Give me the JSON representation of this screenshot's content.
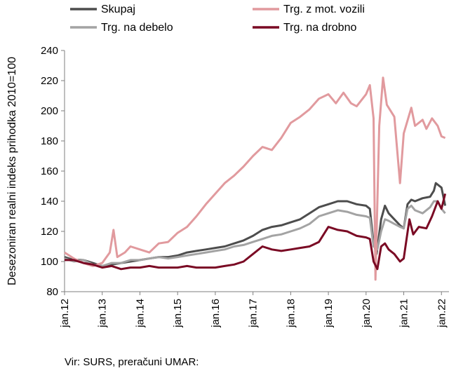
{
  "chart_data": {
    "type": "line",
    "ylabel": "Desezoniran realni indeks prihodka 2010=100",
    "ylim": [
      80,
      240
    ],
    "yticks": [
      80,
      100,
      120,
      140,
      160,
      180,
      200,
      220,
      240
    ],
    "xlim": [
      2012.0,
      2022.2
    ],
    "xticks": [
      {
        "label": "jan.12",
        "value": 2012
      },
      {
        "label": "jan.13",
        "value": 2013
      },
      {
        "label": "jan.14",
        "value": 2014
      },
      {
        "label": "jan.15",
        "value": 2015
      },
      {
        "label": "jan.16",
        "value": 2016
      },
      {
        "label": "jan.17",
        "value": 2017
      },
      {
        "label": "jan.18",
        "value": 2018
      },
      {
        "label": "jan.19",
        "value": 2019
      },
      {
        "label": "jan.20",
        "value": 2020
      },
      {
        "label": "jan.21",
        "value": 2021
      },
      {
        "label": "jan.22",
        "value": 2022
      }
    ],
    "legend_position": "top",
    "series": [
      {
        "name": "Skupaj",
        "color": "#4d4d4d",
        "width": 3,
        "points": [
          [
            2012.0,
            103
          ],
          [
            2012.25,
            101
          ],
          [
            2012.5,
            101
          ],
          [
            2012.75,
            99
          ],
          [
            2013.0,
            97
          ],
          [
            2013.25,
            98
          ],
          [
            2013.5,
            99
          ],
          [
            2013.75,
            100
          ],
          [
            2014.0,
            101
          ],
          [
            2014.25,
            102
          ],
          [
            2014.5,
            103
          ],
          [
            2014.75,
            103
          ],
          [
            2015.0,
            104
          ],
          [
            2015.25,
            106
          ],
          [
            2015.5,
            107
          ],
          [
            2015.75,
            108
          ],
          [
            2016.0,
            109
          ],
          [
            2016.25,
            110
          ],
          [
            2016.5,
            112
          ],
          [
            2016.75,
            114
          ],
          [
            2017.0,
            117
          ],
          [
            2017.25,
            121
          ],
          [
            2017.5,
            123
          ],
          [
            2017.75,
            124
          ],
          [
            2018.0,
            126
          ],
          [
            2018.25,
            128
          ],
          [
            2018.5,
            132
          ],
          [
            2018.75,
            136
          ],
          [
            2019.0,
            138
          ],
          [
            2019.25,
            140
          ],
          [
            2019.5,
            140
          ],
          [
            2019.75,
            138
          ],
          [
            2020.0,
            137
          ],
          [
            2020.1,
            135
          ],
          [
            2020.2,
            112
          ],
          [
            2020.28,
            105
          ],
          [
            2020.4,
            128
          ],
          [
            2020.5,
            137
          ],
          [
            2020.6,
            132
          ],
          [
            2020.75,
            128
          ],
          [
            2020.9,
            124
          ],
          [
            2021.0,
            122
          ],
          [
            2021.1,
            138
          ],
          [
            2021.2,
            141
          ],
          [
            2021.3,
            140
          ],
          [
            2021.5,
            142
          ],
          [
            2021.7,
            143
          ],
          [
            2021.8,
            147
          ],
          [
            2021.85,
            152
          ],
          [
            2022.0,
            149
          ],
          [
            2022.1,
            137
          ]
        ]
      },
      {
        "name": "Trg. na debelo",
        "color": "#a3a3a3",
        "width": 3,
        "points": [
          [
            2012.0,
            102
          ],
          [
            2012.25,
            100
          ],
          [
            2012.5,
            101
          ],
          [
            2012.75,
            98
          ],
          [
            2013.0,
            97
          ],
          [
            2013.25,
            99
          ],
          [
            2013.5,
            99
          ],
          [
            2013.75,
            101
          ],
          [
            2014.0,
            101
          ],
          [
            2014.25,
            102
          ],
          [
            2014.5,
            103
          ],
          [
            2014.75,
            102
          ],
          [
            2015.0,
            103
          ],
          [
            2015.25,
            104
          ],
          [
            2015.5,
            105
          ],
          [
            2015.75,
            106
          ],
          [
            2016.0,
            107
          ],
          [
            2016.25,
            108
          ],
          [
            2016.5,
            110
          ],
          [
            2016.75,
            111
          ],
          [
            2017.0,
            113
          ],
          [
            2017.25,
            115
          ],
          [
            2017.5,
            117
          ],
          [
            2017.75,
            118
          ],
          [
            2018.0,
            120
          ],
          [
            2018.25,
            122
          ],
          [
            2018.5,
            125
          ],
          [
            2018.75,
            130
          ],
          [
            2019.0,
            132
          ],
          [
            2019.25,
            134
          ],
          [
            2019.5,
            133
          ],
          [
            2019.75,
            131
          ],
          [
            2020.0,
            130
          ],
          [
            2020.1,
            129
          ],
          [
            2020.2,
            110
          ],
          [
            2020.3,
            108
          ],
          [
            2020.4,
            120
          ],
          [
            2020.5,
            128
          ],
          [
            2020.6,
            127
          ],
          [
            2020.75,
            125
          ],
          [
            2020.9,
            123
          ],
          [
            2021.0,
            122
          ],
          [
            2021.1,
            135
          ],
          [
            2021.2,
            137
          ],
          [
            2021.3,
            134
          ],
          [
            2021.5,
            132
          ],
          [
            2021.7,
            136
          ],
          [
            2021.8,
            140
          ],
          [
            2021.9,
            140
          ],
          [
            2022.0,
            135
          ],
          [
            2022.1,
            132
          ]
        ]
      },
      {
        "name": "Trg. z mot. vozili",
        "color": "#e19a9e",
        "width": 3,
        "points": [
          [
            2012.0,
            106
          ],
          [
            2012.25,
            102
          ],
          [
            2012.5,
            99
          ],
          [
            2012.75,
            97
          ],
          [
            2013.0,
            99
          ],
          [
            2013.2,
            106
          ],
          [
            2013.3,
            121
          ],
          [
            2013.4,
            103
          ],
          [
            2013.6,
            106
          ],
          [
            2013.75,
            110
          ],
          [
            2014.0,
            108
          ],
          [
            2014.25,
            106
          ],
          [
            2014.5,
            112
          ],
          [
            2014.75,
            113
          ],
          [
            2015.0,
            119
          ],
          [
            2015.25,
            123
          ],
          [
            2015.5,
            130
          ],
          [
            2015.75,
            138
          ],
          [
            2016.0,
            145
          ],
          [
            2016.25,
            152
          ],
          [
            2016.5,
            157
          ],
          [
            2016.75,
            163
          ],
          [
            2017.0,
            170
          ],
          [
            2017.25,
            176
          ],
          [
            2017.5,
            174
          ],
          [
            2017.75,
            182
          ],
          [
            2018.0,
            192
          ],
          [
            2018.25,
            196
          ],
          [
            2018.5,
            201
          ],
          [
            2018.75,
            208
          ],
          [
            2019.0,
            211
          ],
          [
            2019.2,
            205
          ],
          [
            2019.4,
            212
          ],
          [
            2019.6,
            205
          ],
          [
            2019.75,
            203
          ],
          [
            2020.0,
            211
          ],
          [
            2020.1,
            217
          ],
          [
            2020.2,
            195
          ],
          [
            2020.25,
            88
          ],
          [
            2020.35,
            190
          ],
          [
            2020.45,
            222
          ],
          [
            2020.55,
            204
          ],
          [
            2020.75,
            196
          ],
          [
            2020.9,
            152
          ],
          [
            2021.0,
            185
          ],
          [
            2021.2,
            202
          ],
          [
            2021.3,
            190
          ],
          [
            2021.5,
            194
          ],
          [
            2021.6,
            188
          ],
          [
            2021.75,
            195
          ],
          [
            2021.9,
            190
          ],
          [
            2022.0,
            183
          ],
          [
            2022.1,
            182
          ]
        ]
      },
      {
        "name": "Trg. na drobno",
        "color": "#7a0a24",
        "width": 3,
        "points": [
          [
            2012.0,
            101
          ],
          [
            2012.25,
            101
          ],
          [
            2012.5,
            99
          ],
          [
            2012.75,
            98
          ],
          [
            2013.0,
            96
          ],
          [
            2013.25,
            97
          ],
          [
            2013.5,
            95
          ],
          [
            2013.75,
            96
          ],
          [
            2014.0,
            96
          ],
          [
            2014.25,
            97
          ],
          [
            2014.5,
            96
          ],
          [
            2014.75,
            96
          ],
          [
            2015.0,
            96
          ],
          [
            2015.25,
            97
          ],
          [
            2015.5,
            96
          ],
          [
            2015.75,
            96
          ],
          [
            2016.0,
            96
          ],
          [
            2016.25,
            97
          ],
          [
            2016.5,
            98
          ],
          [
            2016.75,
            100
          ],
          [
            2017.0,
            105
          ],
          [
            2017.25,
            110
          ],
          [
            2017.5,
            108
          ],
          [
            2017.75,
            107
          ],
          [
            2018.0,
            108
          ],
          [
            2018.25,
            109
          ],
          [
            2018.5,
            110
          ],
          [
            2018.75,
            113
          ],
          [
            2019.0,
            123
          ],
          [
            2019.25,
            121
          ],
          [
            2019.5,
            120
          ],
          [
            2019.75,
            117
          ],
          [
            2020.0,
            116
          ],
          [
            2020.1,
            115
          ],
          [
            2020.2,
            100
          ],
          [
            2020.3,
            95
          ],
          [
            2020.4,
            110
          ],
          [
            2020.5,
            112
          ],
          [
            2020.6,
            108
          ],
          [
            2020.75,
            105
          ],
          [
            2020.9,
            100
          ],
          [
            2021.0,
            102
          ],
          [
            2021.15,
            128
          ],
          [
            2021.25,
            118
          ],
          [
            2021.4,
            123
          ],
          [
            2021.6,
            122
          ],
          [
            2021.75,
            130
          ],
          [
            2021.9,
            140
          ],
          [
            2022.0,
            135
          ],
          [
            2022.1,
            145
          ]
        ]
      }
    ]
  },
  "source_text": "Vir: SURS, preračuni UMAR:"
}
